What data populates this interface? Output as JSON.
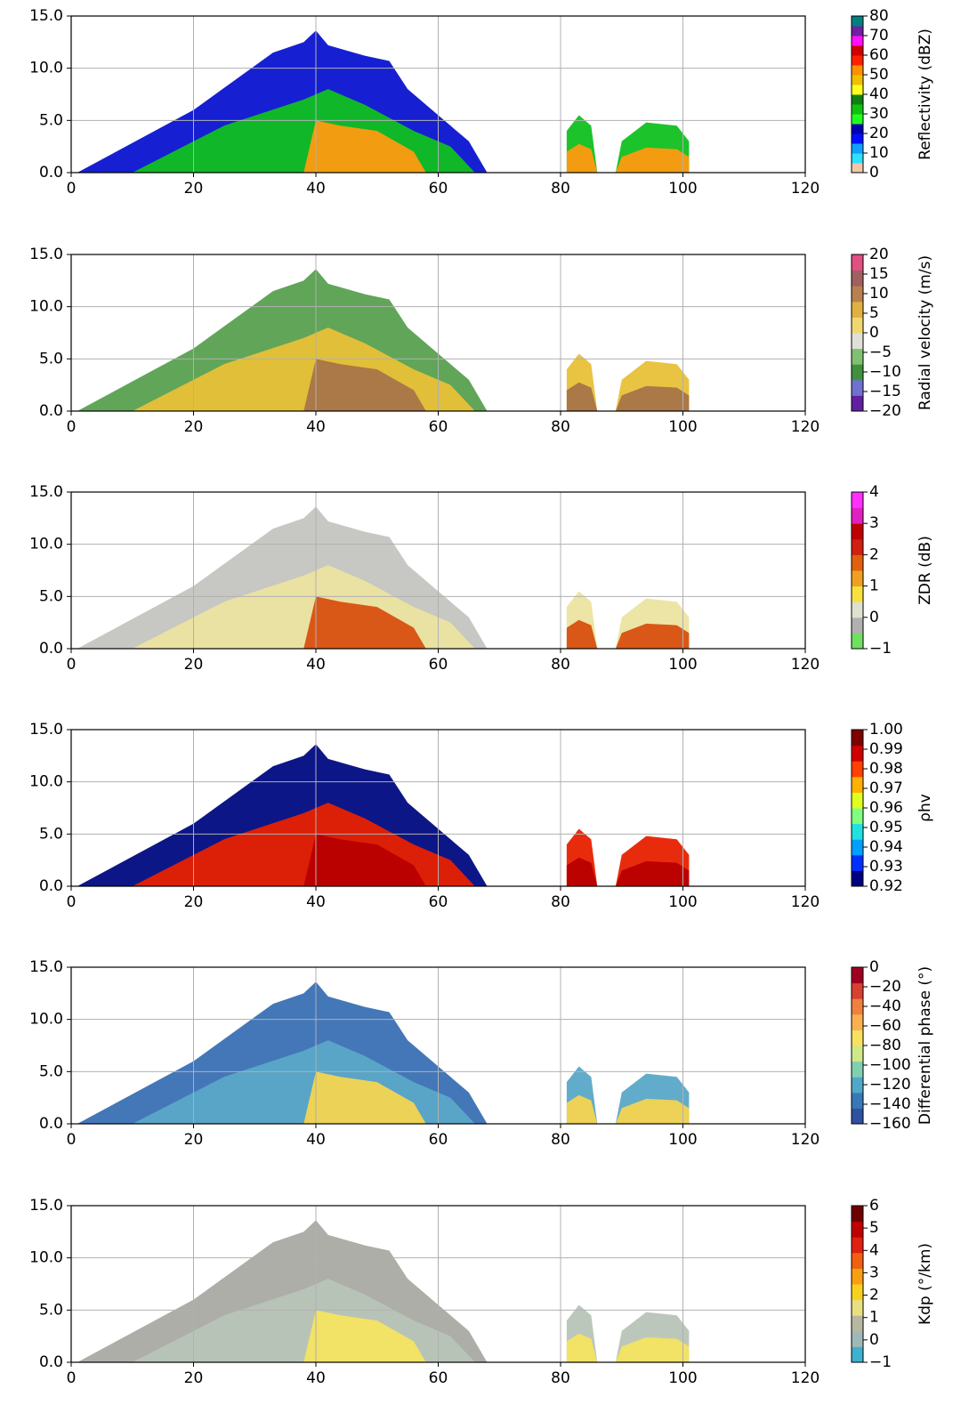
{
  "chart_data": [
    {
      "type": "heatmap",
      "xlim": [
        0,
        120
      ],
      "ylim": [
        0,
        15
      ],
      "xticks": [
        0,
        20,
        40,
        60,
        80,
        100,
        120
      ],
      "yticks": [
        {
          "value": 0,
          "label": "0.0"
        },
        {
          "value": 5,
          "label": "5.0"
        },
        {
          "value": 10,
          "label": "10.0"
        },
        {
          "value": 15,
          "label": "15.0"
        }
      ],
      "grid": true,
      "field_colors": [
        "#0a14d0",
        "#10c020",
        "#ff9a10"
      ],
      "colorbar": {
        "label": "Reflectivity (dBZ)",
        "lim": [
          0,
          80
        ],
        "ticks": [
          0,
          10,
          20,
          30,
          40,
          50,
          60,
          70,
          80
        ],
        "colors": [
          "#f0c8a8",
          "#30e0ff",
          "#10a0ff",
          "#0010ff",
          "#0000b0",
          "#20ff20",
          "#10c010",
          "#108010",
          "#ffff20",
          "#f0c000",
          "#ff9000",
          "#ff2000",
          "#d00000",
          "#ff10ff",
          "#7020a0",
          "#008080"
        ]
      }
    },
    {
      "type": "heatmap",
      "xlim": [
        0,
        120
      ],
      "ylim": [
        0,
        15
      ],
      "xticks": [
        0,
        20,
        40,
        60,
        80,
        100,
        120
      ],
      "yticks": [
        {
          "value": 0,
          "label": "0.0"
        },
        {
          "value": 5,
          "label": "5.0"
        },
        {
          "value": 10,
          "label": "10.0"
        },
        {
          "value": 15,
          "label": "15.0"
        }
      ],
      "grid": true,
      "field_colors": [
        "#58a050",
        "#e8c038",
        "#a87448"
      ],
      "colorbar": {
        "label": "Radial velocity (m/s)",
        "lim": [
          -20,
          20
        ],
        "ticks": [
          {
            "value": -20,
            "label": "−20"
          },
          {
            "value": -15,
            "label": "−15"
          },
          {
            "value": -10,
            "label": "−10"
          },
          {
            "value": -5,
            "label": "−5"
          },
          0,
          5,
          10,
          15,
          20
        ],
        "colors": [
          "#6020a0",
          "#7070d0",
          "#409040",
          "#80c070",
          "#e0e0d8",
          "#f0d870",
          "#e0b040",
          "#b88050",
          "#a06060",
          "#e05080"
        ]
      }
    },
    {
      "type": "heatmap",
      "xlim": [
        0,
        120
      ],
      "ylim": [
        0,
        15
      ],
      "xticks": [
        0,
        20,
        40,
        60,
        80,
        100,
        120
      ],
      "yticks": [
        {
          "value": 0,
          "label": "0.0"
        },
        {
          "value": 5,
          "label": "5.0"
        },
        {
          "value": 10,
          "label": "10.0"
        },
        {
          "value": 15,
          "label": "15.0"
        }
      ],
      "grid": true,
      "field_colors": [
        "#c4c4c0",
        "#ece4a0",
        "#d85010"
      ],
      "colorbar": {
        "label": "ZDR (dB)",
        "lim": [
          -1,
          4
        ],
        "ticks": [
          {
            "value": -1,
            "label": "−1"
          },
          0,
          1,
          2,
          3,
          4
        ],
        "colors": [
          "#70e060",
          "#b0b0b0",
          "#e0e0d0",
          "#f8e040",
          "#f0a020",
          "#e06010",
          "#d02010",
          "#c00000",
          "#e020c0",
          "#ff30ff"
        ]
      }
    },
    {
      "type": "heatmap",
      "xlim": [
        0,
        120
      ],
      "ylim": [
        0,
        15
      ],
      "xticks": [
        0,
        20,
        40,
        60,
        80,
        100,
        120
      ],
      "yticks": [
        {
          "value": 0,
          "label": "0.0"
        },
        {
          "value": 5,
          "label": "5.0"
        },
        {
          "value": 10,
          "label": "10.0"
        },
        {
          "value": 15,
          "label": "15.0"
        }
      ],
      "grid": true,
      "field_colors": [
        "#000a80",
        "#e82000",
        "#b80000"
      ],
      "colorbar": {
        "label": "ρhv",
        "lim": [
          0.92,
          1
        ],
        "ticks": [
          0.92,
          0.93,
          0.94,
          0.95,
          0.96,
          0.97,
          0.98,
          0.99,
          {
            "value": 1,
            "label": "1.00"
          }
        ],
        "colors": [
          "#000080",
          "#0030ff",
          "#00a0ff",
          "#20e0e0",
          "#80ff80",
          "#e0ff20",
          "#ffb000",
          "#ff4000",
          "#d00000",
          "#800000"
        ]
      }
    },
    {
      "type": "heatmap",
      "xlim": [
        0,
        120
      ],
      "ylim": [
        0,
        15
      ],
      "xticks": [
        0,
        20,
        40,
        60,
        80,
        100,
        120
      ],
      "yticks": [
        {
          "value": 0,
          "label": "0.0"
        },
        {
          "value": 5,
          "label": "5.0"
        },
        {
          "value": 10,
          "label": "10.0"
        },
        {
          "value": 15,
          "label": "15.0"
        }
      ],
      "grid": true,
      "field_colors": [
        "#3a70b4",
        "#5aa8c8",
        "#f4d450"
      ],
      "colorbar": {
        "label": "Differential phase (°)",
        "lim": [
          -160,
          0
        ],
        "ticks": [
          {
            "value": -160,
            "label": "−160"
          },
          {
            "value": -140,
            "label": "−140"
          },
          {
            "value": -120,
            "label": "−120"
          },
          {
            "value": -100,
            "label": "−100"
          },
          {
            "value": -80,
            "label": "−80"
          },
          {
            "value": -60,
            "label": "−60"
          },
          {
            "value": -40,
            "label": "−40"
          },
          {
            "value": -20,
            "label": "−20"
          },
          0
        ],
        "colors": [
          "#3050a0",
          "#3878b8",
          "#50a8c8",
          "#80d0b0",
          "#d0e888",
          "#f8e060",
          "#f8b050",
          "#f08040",
          "#d84030",
          "#a00020"
        ]
      }
    },
    {
      "type": "heatmap",
      "xlim": [
        0,
        120
      ],
      "ylim": [
        0,
        15
      ],
      "xticks": [
        0,
        20,
        40,
        60,
        80,
        100,
        120
      ],
      "yticks": [
        {
          "value": 0,
          "label": "0.0"
        },
        {
          "value": 5,
          "label": "5.0"
        },
        {
          "value": 10,
          "label": "10.0"
        },
        {
          "value": 15,
          "label": "15.0"
        }
      ],
      "grid": true,
      "field_colors": [
        "#a8aaa2",
        "#b8c4b8",
        "#f4e460"
      ],
      "colorbar": {
        "label": "Kdp (°/km)",
        "lim": [
          -1,
          6
        ],
        "ticks": [
          {
            "value": -1,
            "label": "−1"
          },
          0,
          1,
          2,
          3,
          4,
          5,
          6
        ],
        "colors": [
          "#40b0d0",
          "#a0b8b8",
          "#b8b8a0",
          "#e8e080",
          "#f8d020",
          "#f8a010",
          "#f06010",
          "#e02010",
          "#c00000",
          "#700000"
        ]
      }
    }
  ]
}
